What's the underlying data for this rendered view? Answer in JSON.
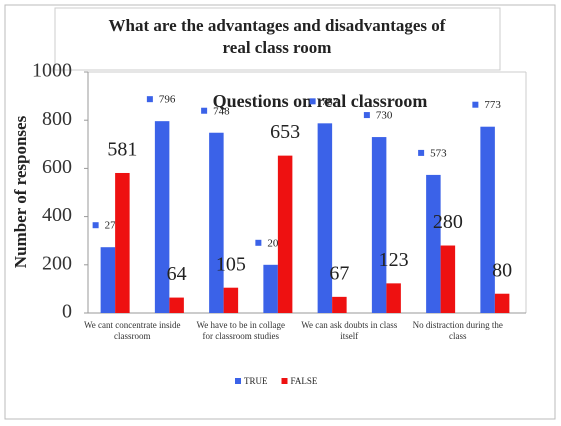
{
  "chart_data": {
    "type": "bar",
    "title": "What are the advantages and disadvantages of real class room",
    "subtitle": "Questions on real classroom",
    "y_label": "Number of responses",
    "categories": [
      "We cant concentrate inside classroom",
      null,
      "We have to be in collage for classroom studies",
      null,
      "We can ask doubts in class itself",
      null,
      "No distraction during the class",
      null
    ],
    "series": [
      {
        "name": "TRUE",
        "color": "#3b62e8",
        "values": [
          273,
          796,
          748,
          200,
          787,
          730,
          573,
          773
        ]
      },
      {
        "name": "FALSE",
        "color": "#ee1111",
        "values": [
          581,
          64,
          105,
          653,
          67,
          123,
          280,
          80
        ]
      }
    ],
    "ylim": [
      0,
      1000
    ],
    "yticks": [
      0,
      200,
      400,
      600,
      800,
      1000
    ],
    "legend": "bottom"
  }
}
